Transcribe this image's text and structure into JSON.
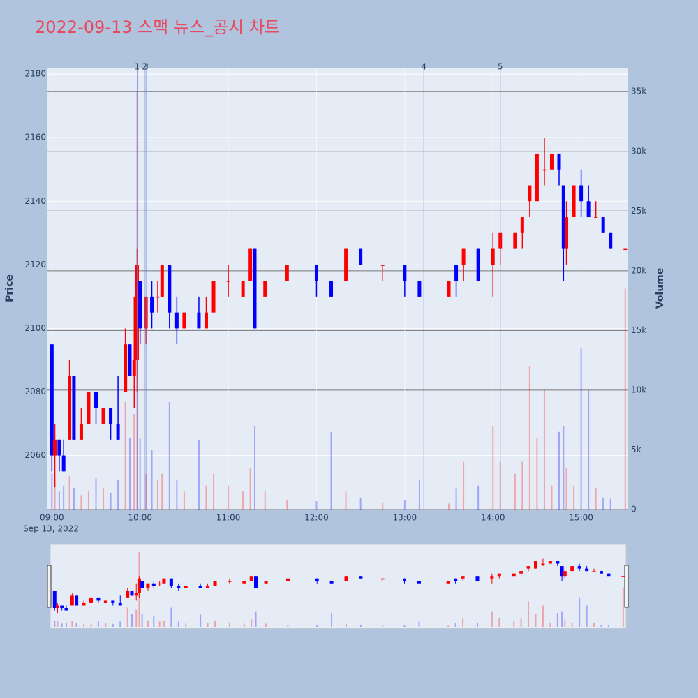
{
  "chart_data": {
    "type": "candlestick",
    "title": "2022-09-13 스맥 뉴스_공시 차트",
    "y_label": "Price",
    "y2_label": "Volume",
    "x_date_label": "Sep 13, 2022",
    "increasing_color": "#ff0000",
    "decreasing_color": "#0000ff",
    "x": [
      "09:00",
      "09:02",
      "09:05",
      "09:08",
      "09:12",
      "09:15",
      "09:20",
      "09:25",
      "09:30",
      "09:35",
      "09:40",
      "09:45",
      "09:50",
      "09:53",
      "09:56",
      "09:58",
      "10:00",
      "10:04",
      "10:08",
      "10:12",
      "10:15",
      "10:20",
      "10:25",
      "10:30",
      "10:40",
      "10:45",
      "10:50",
      "11:00",
      "11:10",
      "11:15",
      "11:18",
      "11:25",
      "11:40",
      "12:00",
      "12:10",
      "12:20",
      "12:30",
      "12:45",
      "13:00",
      "13:10",
      "13:30",
      "13:35",
      "13:40",
      "13:50",
      "14:00",
      "14:05",
      "14:15",
      "14:20",
      "14:25",
      "14:30",
      "14:35",
      "14:40",
      "14:45",
      "14:48",
      "14:50",
      "14:55",
      "15:00",
      "15:05",
      "15:10",
      "15:15",
      "15:20",
      "15:30"
    ],
    "open": [
      2095,
      2060,
      2065,
      2060,
      2065,
      2085,
      2065,
      2070,
      2080,
      2070,
      2075,
      2070,
      2080,
      2095,
      2085,
      2090,
      2115,
      2100,
      2110,
      2110,
      2110,
      2120,
      2105,
      2100,
      2105,
      2100,
      2105,
      2115,
      2110,
      2115,
      2125,
      2110,
      2115,
      2120,
      2115,
      2115,
      2125,
      2120,
      2120,
      2115,
      2110,
      2120,
      2120,
      2125,
      2120,
      2125,
      2125,
      2130,
      2140,
      2140,
      2150,
      2150,
      2155,
      2145,
      2125,
      2135,
      2145,
      2140,
      2135,
      2135,
      2130,
      2125
    ],
    "high": [
      2095,
      2070,
      2065,
      2065,
      2090,
      2085,
      2075,
      2080,
      2080,
      2075,
      2075,
      2085,
      2100,
      2095,
      2110,
      2125,
      2115,
      2110,
      2115,
      2115,
      2120,
      2120,
      2110,
      2105,
      2110,
      2110,
      2115,
      2120,
      2115,
      2125,
      2125,
      2115,
      2120,
      2120,
      2115,
      2125,
      2125,
      2120,
      2120,
      2115,
      2115,
      2120,
      2125,
      2125,
      2130,
      2130,
      2130,
      2135,
      2145,
      2155,
      2160,
      2155,
      2155,
      2145,
      2140,
      2145,
      2150,
      2145,
      2140,
      2135,
      2130,
      2125
    ],
    "low": [
      2055,
      2050,
      2055,
      2055,
      2065,
      2065,
      2065,
      2070,
      2070,
      2070,
      2065,
      2065,
      2080,
      2085,
      2075,
      2080,
      2095,
      2095,
      2100,
      2105,
      2110,
      2100,
      2095,
      2100,
      2100,
      2100,
      2105,
      2110,
      2110,
      2115,
      2100,
      2110,
      2115,
      2110,
      2110,
      2115,
      2120,
      2115,
      2110,
      2110,
      2110,
      2110,
      2115,
      2115,
      2110,
      2120,
      2125,
      2125,
      2135,
      2140,
      2145,
      2150,
      2145,
      2115,
      2120,
      2135,
      2135,
      2135,
      2135,
      2130,
      2125,
      2125
    ],
    "close": [
      2060,
      2065,
      2060,
      2055,
      2085,
      2065,
      2070,
      2080,
      2075,
      2075,
      2070,
      2065,
      2095,
      2085,
      2090,
      2120,
      2100,
      2110,
      2105,
      2110,
      2120,
      2105,
      2100,
      2105,
      2100,
      2105,
      2115,
      2115,
      2115,
      2125,
      2100,
      2115,
      2120,
      2115,
      2110,
      2125,
      2120,
      2120,
      2115,
      2110,
      2115,
      2115,
      2125,
      2115,
      2125,
      2130,
      2130,
      2135,
      2145,
      2155,
      2150,
      2155,
      2150,
      2125,
      2135,
      2145,
      2140,
      2135,
      2135,
      2130,
      2125,
      2125
    ],
    "volume": [
      3000,
      2500,
      1500,
      2000,
      2800,
      1800,
      1200,
      1500,
      2600,
      1800,
      1400,
      2500,
      9000,
      6000,
      8000,
      35000,
      6000,
      3000,
      5000,
      2500,
      3000,
      9000,
      2500,
      1500,
      5800,
      2000,
      3000,
      2000,
      1500,
      3500,
      7000,
      1500,
      800,
      700,
      6500,
      1500,
      1000,
      600,
      800,
      2500,
      500,
      1800,
      4000,
      2000,
      7000,
      4000,
      3000,
      4000,
      12000,
      6000,
      10000,
      2000,
      6500,
      7000,
      3500,
      2000,
      13500,
      10000,
      1800,
      1000,
      900,
      18500
    ],
    "news": [
      {
        "label": "1",
        "x": "09:58"
      },
      {
        "label": "2",
        "x": "10:03"
      },
      {
        "label": "3",
        "x": "10:04"
      },
      {
        "label": "4",
        "x": "13:13"
      },
      {
        "label": "5",
        "x": "14:05"
      }
    ],
    "xlim": [
      "08:57",
      "15:32"
    ],
    "xticks": [
      "09:00",
      "10:00",
      "11:00",
      "12:00",
      "13:00",
      "14:00",
      "15:00"
    ],
    "ylim": [
      2043,
      2182
    ],
    "yticks": [
      2060,
      2080,
      2100,
      2120,
      2140,
      2160,
      2180
    ],
    "y2lim": [
      0,
      37000
    ],
    "y2ticks": [
      0,
      {
        "value": 5000,
        "label": "5k"
      },
      {
        "value": 10000,
        "label": "10k"
      },
      {
        "value": 15000,
        "label": "15k"
      },
      {
        "value": 20000,
        "label": "20k"
      },
      {
        "value": 25000,
        "label": "25k"
      },
      {
        "value": 30000,
        "label": "30k"
      },
      {
        "value": 35000,
        "label": "35k"
      }
    ],
    "grid": true
  }
}
